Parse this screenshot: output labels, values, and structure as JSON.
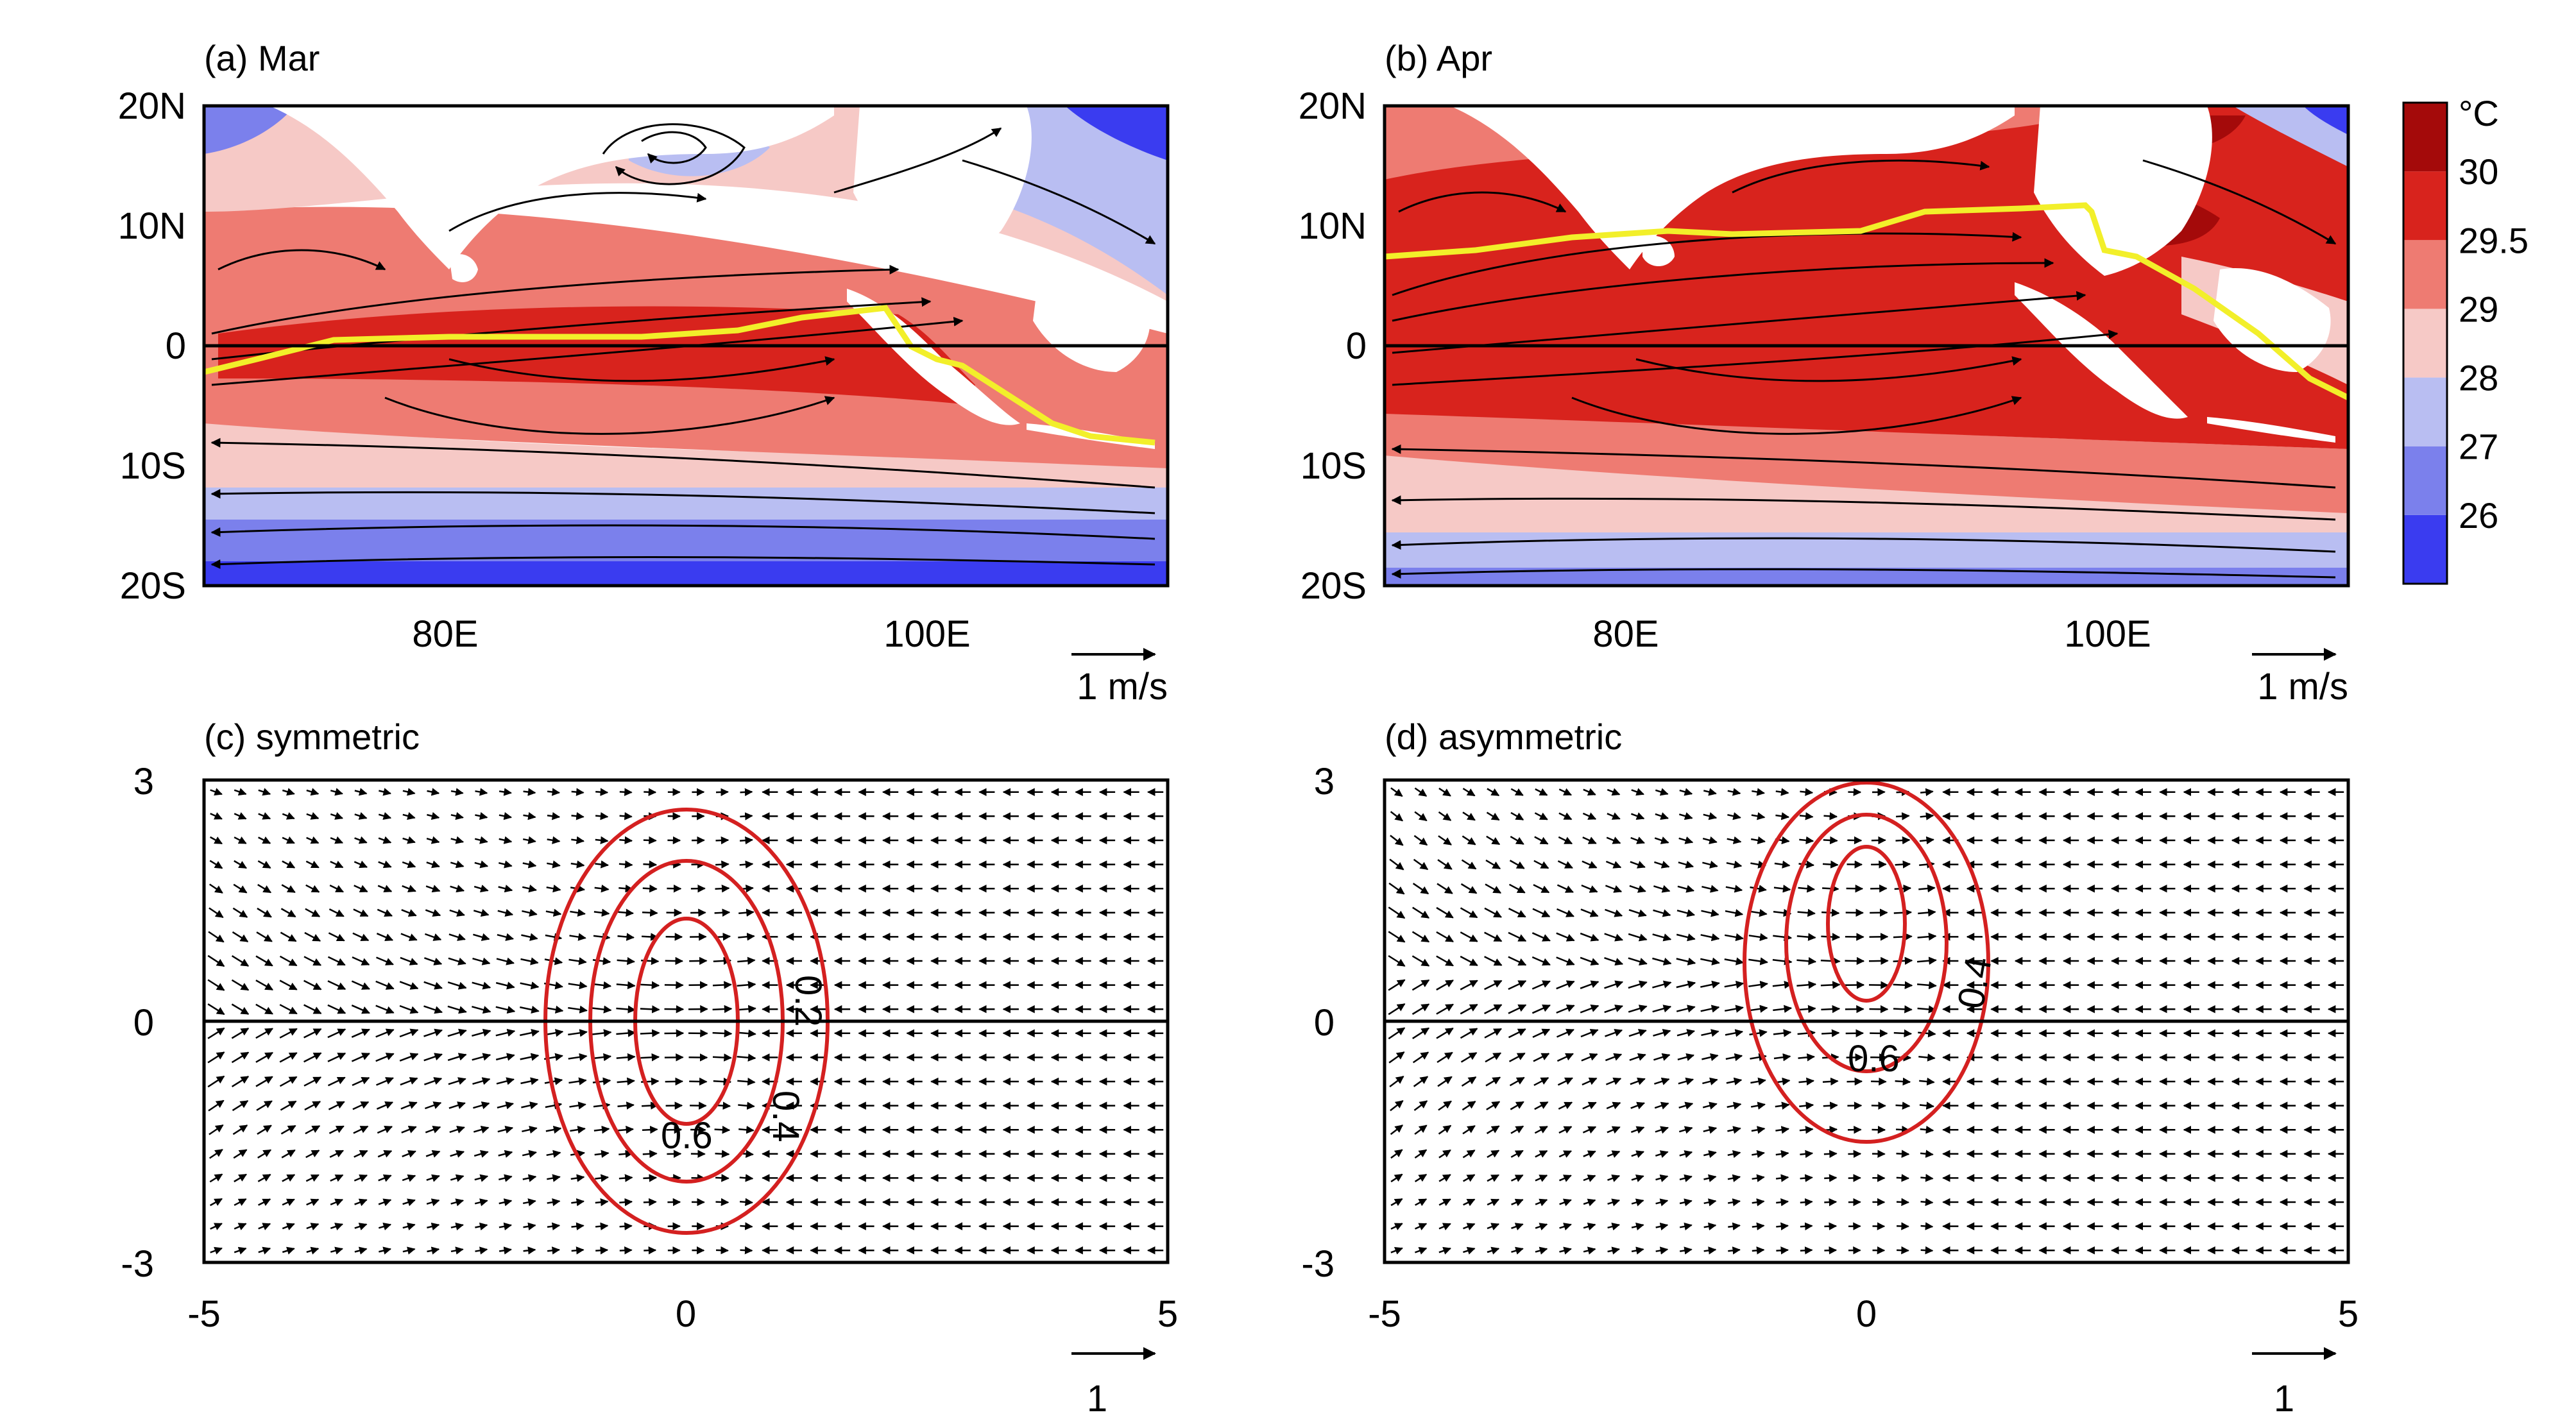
{
  "colors": {
    "shading": [
      "#3a3cf0",
      "#7b80ec",
      "#b9bef2",
      "#f6c9c6",
      "#ee7b72",
      "#d8231d",
      "#a40a0a"
    ],
    "land": "#ffffff",
    "itcz_line": "#f2ef2a",
    "contour": "#d42020",
    "streamline": "#000000"
  },
  "chart_data": [
    {
      "panel": "a",
      "type": "heatmap",
      "title": "(a) Mar",
      "x_ticks": [
        "80E",
        "100E"
      ],
      "y_ticks": [
        "20N",
        "10N",
        "0",
        "10S",
        "20S"
      ],
      "xlim": [
        70,
        110
      ],
      "ylim": [
        -20,
        20
      ],
      "shaded_field_contour_levels": [
        26,
        27,
        28,
        29,
        29.5,
        30
      ],
      "overlay": "streamlines",
      "reference_vector_label": "1 m/s"
    },
    {
      "panel": "b",
      "type": "heatmap",
      "title": "(b) Apr",
      "x_ticks": [
        "80E",
        "100E"
      ],
      "y_ticks": [
        "20N",
        "10N",
        "0",
        "10S",
        "20S"
      ],
      "xlim": [
        70,
        110
      ],
      "ylim": [
        -20,
        20
      ],
      "shaded_field_contour_levels": [
        26,
        27,
        28,
        29,
        29.5,
        30
      ],
      "overlay": "streamlines",
      "reference_vector_label": "1 m/s"
    },
    {
      "panel": "c",
      "type": "scatter",
      "title": "(c) symmetric",
      "x_ticks": [
        "-5",
        "0",
        "5"
      ],
      "y_ticks": [
        "3",
        "0",
        "-3"
      ],
      "xlim": [
        -5,
        5
      ],
      "ylim": [
        -3,
        3
      ],
      "overlay": "vector field with closed contours",
      "contour_labels": [
        "0.2",
        "0.4",
        "0.6"
      ],
      "reference_vector_label": "1"
    },
    {
      "panel": "d",
      "type": "scatter",
      "title": "(d) asymmetric",
      "x_ticks": [
        "-5",
        "0",
        "5"
      ],
      "y_ticks": [
        "3",
        "0",
        "-3"
      ],
      "xlim": [
        -5,
        5
      ],
      "ylim": [
        -3,
        3
      ],
      "overlay": "vector field with closed contours",
      "contour_labels": [
        "0.4",
        "0.6"
      ],
      "reference_vector_label": "1"
    }
  ],
  "colorbar": {
    "unit": "°C",
    "labels": [
      "30",
      "29.5",
      "29",
      "28",
      "27",
      "26"
    ]
  }
}
